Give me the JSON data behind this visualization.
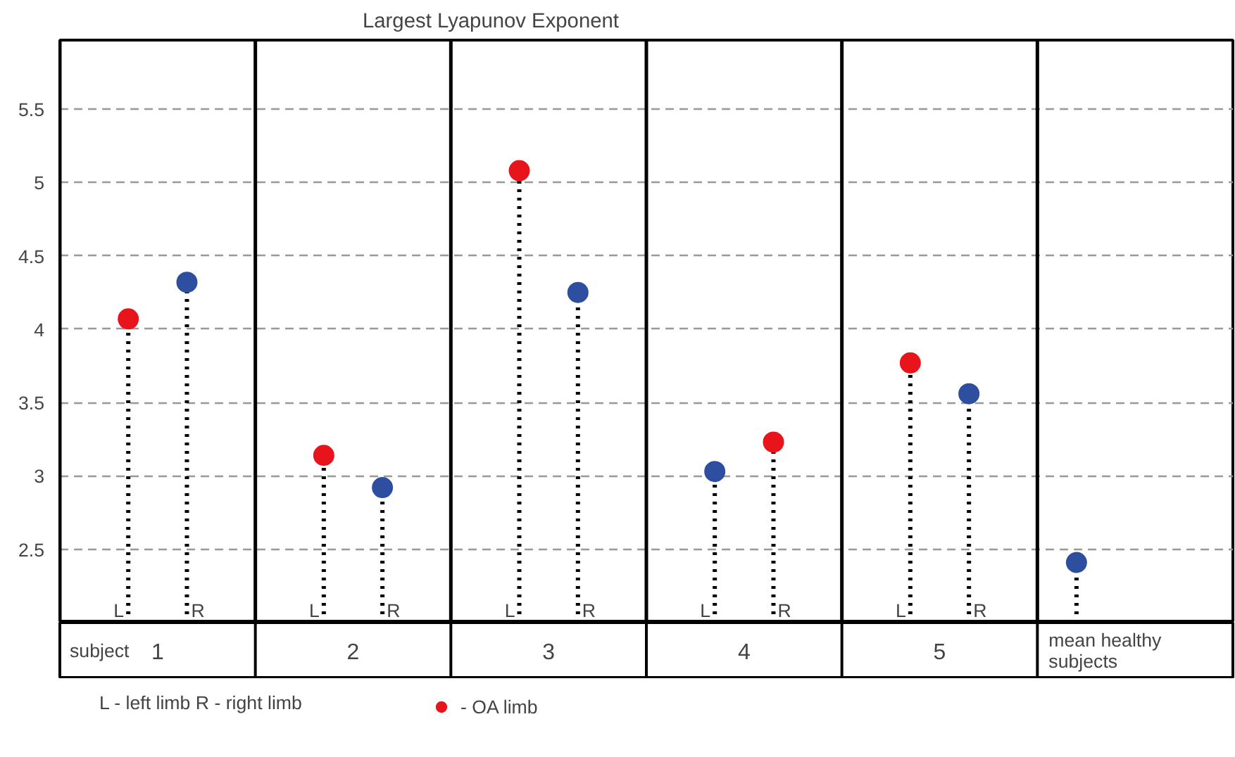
{
  "chart_data": {
    "type": "lollipop",
    "title": "Largest Lyapunov Exponent",
    "categories": [
      "L",
      "R",
      "L",
      "R",
      "L",
      "R",
      "L",
      "R",
      "L",
      "R",
      "mean healthy subjects"
    ],
    "series": [
      {
        "name": "- OA limb",
        "color": "#e8141c",
        "values": [
          4.07,
          null,
          3.14,
          null,
          5.08,
          null,
          null,
          3.23,
          3.77,
          null,
          null
        ]
      },
      {
        "color": "#2e4ea0",
        "values": [
          null,
          4.32,
          null,
          2.92,
          null,
          4.25,
          3.03,
          null,
          null,
          3.56,
          2.41
        ]
      }
    ],
    "ylim": [
      2.0,
      5.97
    ],
    "yticks": [
      2.5,
      3,
      3.5,
      4,
      4.5,
      5,
      5.5
    ],
    "grid": "y",
    "legend": "bottom",
    "marker": "circle",
    "line_style": "dotted",
    "annotations": [
      "subject",
      "1",
      "2",
      "3",
      "4",
      "5",
      "L - left limb  R - right limb"
    ]
  }
}
